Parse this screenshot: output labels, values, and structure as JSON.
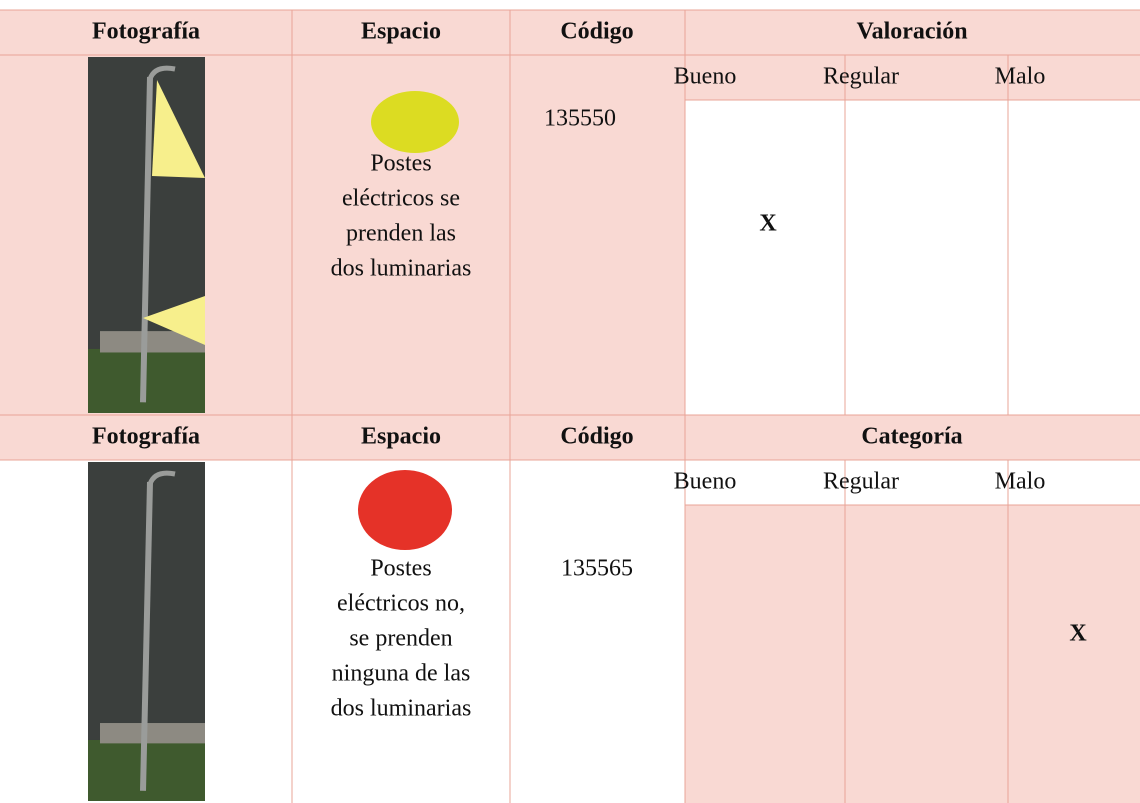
{
  "blocks": [
    {
      "headers": [
        "Fotografía",
        "Espacio",
        "Código",
        "Valoración"
      ],
      "ratings": [
        "Bueno",
        "Regular",
        "Malo"
      ],
      "space_lines": [
        "Postes",
        "eléctricos se",
        "prenden las",
        "dos luminarias"
      ],
      "code": "135550",
      "mark": "X"
    },
    {
      "headers": [
        "Fotografía",
        "Espacio",
        "Código",
        "Categoría"
      ],
      "ratings": [
        "Bueno",
        "Regular",
        "Malo"
      ],
      "space_lines": [
        "Postes",
        "eléctricos no,",
        "se prenden",
        "ninguna de las",
        "dos luminarias"
      ],
      "code": "135565",
      "mark": "X"
    }
  ]
}
